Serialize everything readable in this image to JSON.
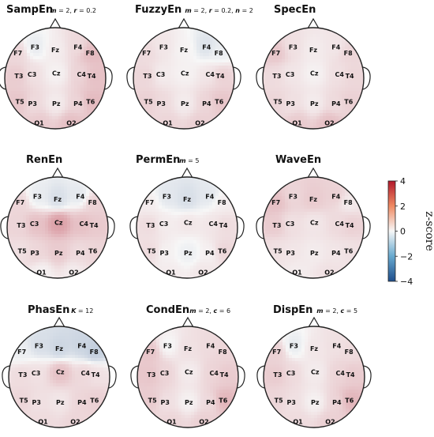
{
  "chart_data": {
    "type": "heatmap",
    "description_kind": "scalp topographic maps (z-score per electrode)",
    "electrodes": [
      "Fz",
      "F3",
      "F4",
      "F7",
      "F8",
      "C3",
      "Cz",
      "C4",
      "T3",
      "T4",
      "T5",
      "P3",
      "Pz",
      "P4",
      "T6",
      "O1",
      "O2"
    ],
    "colorbar": {
      "label": "z-score",
      "range": [
        -4,
        4
      ],
      "ticks": [
        "4",
        "2",
        "0",
        "−2",
        "−4"
      ],
      "colors": {
        "low": "#1f4e8c",
        "mid": "#f7f7f7",
        "high": "#b2182b"
      }
    },
    "maps": [
      {
        "title": "SampEn",
        "params": [
          {
            "sym": "m",
            "val": " = 2, "
          },
          {
            "sym": "r",
            "val": " = 0.2"
          }
        ],
        "values": {
          "Fz": 0.2,
          "F3": -0.3,
          "F4": 0.5,
          "F7": 0.6,
          "F8": 1.1,
          "C3": 0.4,
          "Cz": 0.1,
          "C4": 0.6,
          "T3": 0.8,
          "T4": 1.0,
          "T5": 0.9,
          "P3": 0.5,
          "Pz": 0.2,
          "P4": 0.6,
          "T6": 1.1,
          "O1": 0.8,
          "O2": 1.0
        }
      },
      {
        "title": "FuzzyEn",
        "params": [
          {
            "sym": "m",
            "val": " = 2, "
          },
          {
            "sym": "r",
            "val": " = 0.2, "
          },
          {
            "sym": "n",
            "val": " = 2"
          }
        ],
        "values": {
          "Fz": 0.1,
          "F3": 0.3,
          "F4": -0.5,
          "F7": 0.5,
          "F8": -0.2,
          "C3": 0.2,
          "Cz": 0.1,
          "C4": 0.3,
          "T3": 0.6,
          "T4": 0.7,
          "T5": 0.7,
          "P3": 0.5,
          "Pz": 0.2,
          "P4": 0.6,
          "T6": 0.9,
          "O1": 0.6,
          "O2": 0.7
        }
      },
      {
        "title": "SpecEn",
        "params": [],
        "values": {
          "Fz": 0.2,
          "F3": 0.4,
          "F4": 0.3,
          "F7": 0.9,
          "F8": 0.6,
          "C3": 0.3,
          "Cz": 0.1,
          "C4": 0.4,
          "T3": 0.5,
          "T4": 0.6,
          "T5": 0.6,
          "P3": 0.4,
          "Pz": 0.2,
          "P4": 0.5,
          "T6": 0.7,
          "O1": 0.8,
          "O2": 1.0
        }
      },
      {
        "title": "RenEn",
        "params": [],
        "values": {
          "Fz": -0.6,
          "F3": -0.3,
          "F4": -0.4,
          "F7": 0.6,
          "F8": 0.7,
          "C3": 1.0,
          "Cz": 1.6,
          "C4": 1.0,
          "T3": 0.6,
          "T4": 0.8,
          "T5": 0.4,
          "P3": 0.6,
          "Pz": 0.8,
          "P4": 0.5,
          "T6": 0.6,
          "O1": 0.1,
          "O2": 0.2
        }
      },
      {
        "title": "PermEn",
        "params": [
          {
            "sym": "m",
            "val": " = 5"
          }
        ],
        "values": {
          "Fz": -0.6,
          "F3": -0.4,
          "F4": -0.4,
          "F7": 0.2,
          "F8": 0.2,
          "C3": 0.2,
          "Cz": 0.3,
          "C4": 0.3,
          "T3": 0.5,
          "T4": 0.5,
          "T5": 0.5,
          "P3": 0.1,
          "Pz": -0.2,
          "P4": 0.1,
          "T6": 0.6,
          "O1": 0.2,
          "O2": 0.3
        }
      },
      {
        "title": "WaveEn",
        "params": [],
        "values": {
          "Fz": 0.8,
          "F3": 0.6,
          "F4": 0.7,
          "F7": 1.0,
          "F8": 0.2,
          "C3": 0.4,
          "Cz": 0.3,
          "C4": 0.5,
          "T3": 0.8,
          "T4": 0.7,
          "T5": 0.4,
          "P3": 0.3,
          "Pz": 0.2,
          "P4": 0.3,
          "T6": 0.4,
          "O1": 0.2,
          "O2": 0.4
        }
      },
      {
        "title": "PhasEn",
        "params": [
          {
            "sym": "K",
            "val": " = 12"
          }
        ],
        "values": {
          "Fz": -0.8,
          "F3": -0.6,
          "F4": -0.8,
          "F7": -0.2,
          "F8": -1.0,
          "C3": 0.4,
          "Cz": 1.0,
          "C4": 0.6,
          "T3": 0.5,
          "T4": 0.4,
          "T5": 0.6,
          "P3": 0.4,
          "Pz": 0.3,
          "P4": 0.6,
          "T6": 0.7,
          "O1": 0.5,
          "O2": 0.6
        }
      },
      {
        "title": "CondEn",
        "params": [
          {
            "sym": "m",
            "val": " = 2, "
          },
          {
            "sym": "c",
            "val": " = 6"
          }
        ],
        "values": {
          "Fz": 0.4,
          "F3": 0.0,
          "F4": 0.5,
          "F7": 0.9,
          "F8": 0.6,
          "C3": 0.6,
          "Cz": 0.2,
          "C4": 0.6,
          "T3": 0.9,
          "T4": 0.8,
          "T5": 0.8,
          "P3": 0.4,
          "Pz": 0.1,
          "P4": 0.5,
          "T6": 1.2,
          "O1": 0.6,
          "O2": 0.7
        }
      },
      {
        "title": "DispEn",
        "params": [
          {
            "sym": "m",
            "val": " = 2, "
          },
          {
            "sym": "c",
            "val": " = 5"
          }
        ],
        "values": {
          "Fz": 0.3,
          "F3": -0.3,
          "F4": 0.4,
          "F7": 0.7,
          "F8": 0.5,
          "C3": 0.5,
          "Cz": 0.2,
          "C4": 0.6,
          "T3": 0.8,
          "T4": 0.8,
          "T5": 0.6,
          "P3": 0.4,
          "Pz": 0.1,
          "P4": 0.6,
          "T6": 1.2,
          "O1": 0.5,
          "O2": 0.7
        }
      }
    ]
  }
}
